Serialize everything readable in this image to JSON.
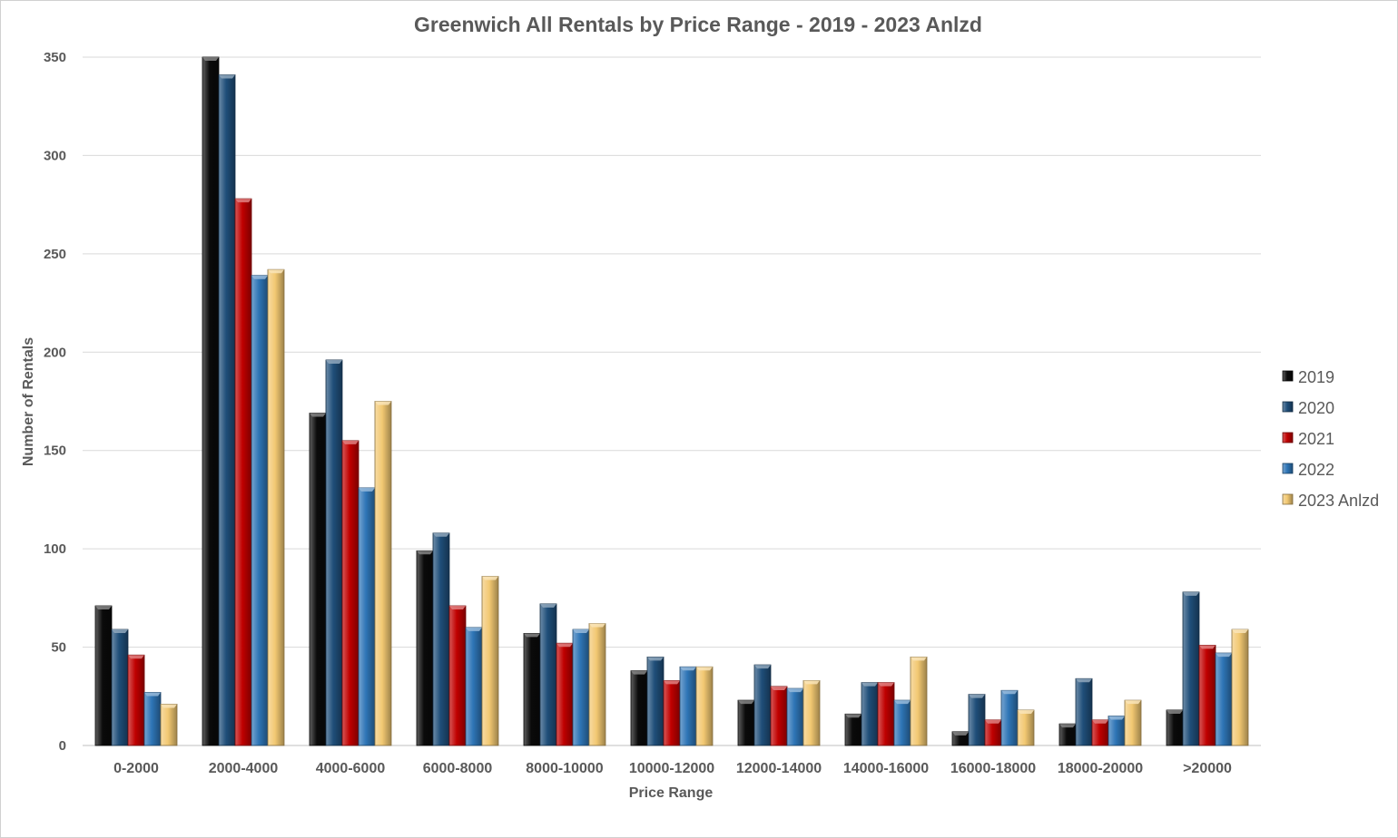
{
  "chart_data": {
    "type": "bar",
    "title": "Greenwich All Rentals by Price Range  -  2019 - 2023 Anlzd",
    "xlabel": "Price Range",
    "ylabel": "Number of Rentals",
    "ylim": [
      0,
      350
    ],
    "yticks": [
      0,
      50,
      100,
      150,
      200,
      250,
      300,
      350
    ],
    "grid": true,
    "legend_position": "right",
    "categories": [
      "0-2000",
      "2000-4000",
      "4000-6000",
      "6000-8000",
      "8000-10000",
      "10000-12000",
      "12000-14000",
      "14000-16000",
      "16000-18000",
      "18000-20000",
      ">20000"
    ],
    "series": [
      {
        "name": "2019",
        "color": "#0a0a0a",
        "values": [
          71,
          351,
          169,
          99,
          57,
          38,
          23,
          16,
          7,
          11,
          18
        ]
      },
      {
        "name": "2020",
        "color": "#1f4e79",
        "values": [
          59,
          341,
          196,
          108,
          72,
          45,
          41,
          32,
          26,
          34,
          78
        ]
      },
      {
        "name": "2021",
        "color": "#c00000",
        "values": [
          46,
          278,
          155,
          71,
          52,
          33,
          30,
          32,
          13,
          13,
          51
        ]
      },
      {
        "name": "2022",
        "color": "#2e75b6",
        "values": [
          27,
          239,
          131,
          60,
          59,
          40,
          29,
          23,
          28,
          15,
          47
        ]
      },
      {
        "name": "2023 Anlzd",
        "color": "#f2c872",
        "values": [
          21,
          242,
          175,
          86,
          62,
          40,
          33,
          45,
          18,
          23,
          59
        ]
      }
    ]
  }
}
